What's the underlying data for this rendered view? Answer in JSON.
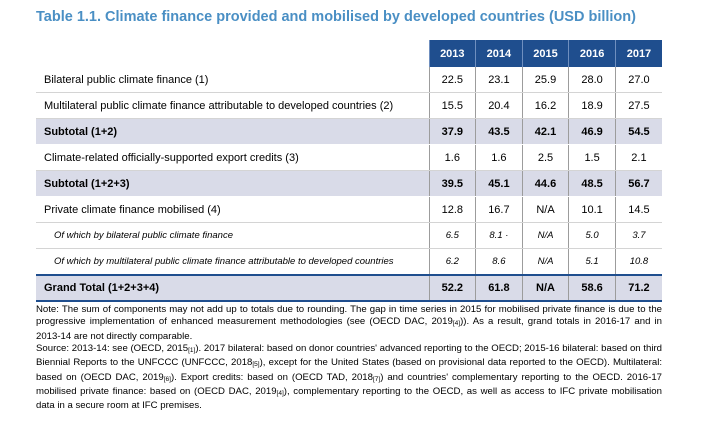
{
  "title": "Table 1.1. Climate finance provided and mobilised by developed countries (USD billion)",
  "years": [
    "2013",
    "2014",
    "2015",
    "2016",
    "2017"
  ],
  "rows": [
    {
      "label": "Bilateral public climate finance (1)",
      "values": [
        "22.5",
        "23.1",
        "25.9",
        "28.0",
        "27.0"
      ]
    },
    {
      "label": "Multilateral public climate finance attributable to developed countries (2)",
      "values": [
        "15.5",
        "20.4",
        "16.2",
        "18.9",
        "27.5"
      ]
    },
    {
      "label": "Subtotal (1+2)",
      "values": [
        "37.9",
        "43.5",
        "42.1",
        "46.9",
        "54.5"
      ]
    },
    {
      "label": "Climate-related officially-supported export credits (3)",
      "values": [
        "1.6",
        "1.6",
        "2.5",
        "1.5",
        "2.1"
      ]
    },
    {
      "label": "Subtotal (1+2+3)",
      "values": [
        "39.5",
        "45.1",
        "44.6",
        "48.5",
        "56.7"
      ]
    },
    {
      "label": "Private climate finance mobilised (4)",
      "values": [
        "12.8",
        "16.7",
        "N/A",
        "10.1",
        "14.5"
      ]
    },
    {
      "label": "Of which by bilateral public climate finance",
      "values": [
        "6.5",
        "8.1 ·",
        "N/A",
        "5.0",
        "3.7"
      ]
    },
    {
      "label": "Of which by multilateral public climate finance attributable to developed countries",
      "values": [
        "6.2",
        "8.6",
        "N/A",
        "5.1",
        "10.8"
      ]
    },
    {
      "label": "Grand Total (1+2+3+4)",
      "values": [
        "52.2",
        "61.8",
        "N/A",
        "58.6",
        "71.2"
      ]
    }
  ],
  "note": {
    "p1_a": "Note: The sum of components may not add up to totals due to rounding. The gap in time series in 2015 for mobilised private finance is due to the progressive implementation of enhanced measurement methodologies (see (OECD DAC, 2019",
    "p1_ref": "[4]",
    "p1_b": ")). As a result, grand totals in 2016-17 and in 2013-14 are not directly comparable.",
    "p2_a": "Source: 2013-14: see (OECD, 2015",
    "p2_ref1": "[1]",
    "p2_b": "). 2017 bilateral: based on donor countries' advanced reporting to the OECD; 2015-16 bilateral: based on third Biennial Reports to the UNFCCC (UNFCCC, 2018",
    "p2_ref2": "[5]",
    "p2_c": "), except for the United States (based on provisional data reported to the OECD). Multilateral: based on (OECD DAC, 2019",
    "p2_ref3": "[6]",
    "p2_d": "). Export credits: based on (OECD TAD, 2018",
    "p2_ref4": "[7]",
    "p2_e": ") and countries' complementary reporting to the OECD. 2016-17 mobilised private finance: based on (OECD DAC, 2019",
    "p2_ref5": "[4]",
    "p2_f": "), complementary reporting to the OECD, as well as access to IFC private mobilisation data in a secure room at IFC premises."
  }
}
